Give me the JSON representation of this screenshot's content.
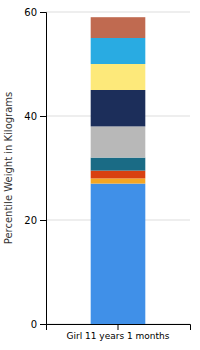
{
  "chart_data": {
    "type": "bar",
    "stacked": true,
    "ylabel": "Percentile Weight in Kilograms",
    "categories": [
      "Girl 11 years 1 months"
    ],
    "series": [
      {
        "color": "#4090E8",
        "values": [
          27.0
        ]
      },
      {
        "color": "#F5A623",
        "values": [
          1.0
        ]
      },
      {
        "color": "#D94010",
        "values": [
          1.5
        ]
      },
      {
        "color": "#1A6B85",
        "values": [
          2.5
        ]
      },
      {
        "color": "#B8B8B8",
        "values": [
          6.0
        ]
      },
      {
        "color": "#1C2E5A",
        "values": [
          7.0
        ]
      },
      {
        "color": "#FDE97A",
        "values": [
          5.0
        ]
      },
      {
        "color": "#29ABE2",
        "values": [
          5.0
        ]
      },
      {
        "color": "#C06A50",
        "values": [
          4.0
        ]
      }
    ],
    "ylim": [
      0,
      60
    ],
    "yticks": [
      0,
      20,
      40,
      60
    ],
    "grid": true
  }
}
